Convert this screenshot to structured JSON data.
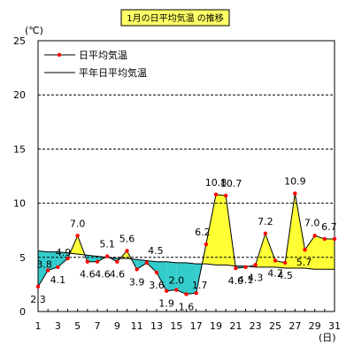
{
  "chart_data": {
    "type": "area",
    "title": "1月の日平均気温 の推移",
    "y_unit_label": "(℃)",
    "x_unit_label": "(日)",
    "ylim": [
      0,
      25
    ],
    "yticks": [
      "0",
      "5",
      "10",
      "15",
      "20",
      "25"
    ],
    "xlim": [
      1,
      31
    ],
    "xticks": [
      "1",
      "3",
      "5",
      "7",
      "9",
      "11",
      "13",
      "15",
      "17",
      "19",
      "21",
      "23",
      "25",
      "27",
      "29",
      "31"
    ],
    "grid": "horizontal dashed at 5, 10, 15, 20",
    "legend_position": "top-left",
    "x": [
      1,
      2,
      3,
      4,
      5,
      6,
      7,
      8,
      9,
      10,
      11,
      12,
      13,
      14,
      15,
      16,
      17,
      18,
      19,
      20,
      21,
      22,
      23,
      24,
      25,
      26,
      27,
      28,
      29,
      30,
      31
    ],
    "series": [
      {
        "name": "日平均気温",
        "values": [
          2.3,
          3.8,
          4.1,
          4.9,
          7.0,
          4.6,
          4.6,
          5.1,
          4.6,
          5.6,
          3.9,
          4.5,
          3.6,
          1.9,
          2.0,
          1.6,
          1.7,
          6.2,
          10.8,
          10.7,
          4.0,
          4.1,
          4.3,
          7.2,
          4.7,
          4.5,
          10.9,
          5.7,
          7.0,
          6.7,
          6.7
        ],
        "labels": [
          "2.3",
          "3.8",
          "4.1",
          "4.9",
          "7.0",
          "4.6",
          "4.6",
          "5.1",
          "4.6",
          "5.6",
          "3.9",
          "4.5",
          "3.6",
          "1.9",
          "2.0",
          "1.6",
          "1.7",
          "6.2",
          "10.8",
          "10.7",
          "4.0",
          "4.1",
          "4.3",
          "7.2",
          "4.7",
          "4.5",
          "10.9",
          "5.7",
          "7.0",
          "6.7",
          ""
        ],
        "color": "#ff0000",
        "line_color": "#000000"
      },
      {
        "name": "平年日平均気温",
        "values": [
          5.6,
          5.5,
          5.5,
          5.4,
          5.3,
          5.2,
          5.1,
          5.0,
          4.9,
          4.9,
          4.8,
          4.7,
          4.6,
          4.6,
          4.5,
          4.5,
          4.4,
          4.4,
          4.3,
          4.3,
          4.2,
          4.2,
          4.1,
          4.1,
          4.1,
          4.0,
          4.0,
          4.0,
          3.9,
          3.9,
          3.9
        ],
        "color": "#000000"
      }
    ],
    "fill_above_normal_color": "#ffff33",
    "fill_below_normal_color": "#33cccc",
    "title_box_fill": "#ffff66"
  }
}
